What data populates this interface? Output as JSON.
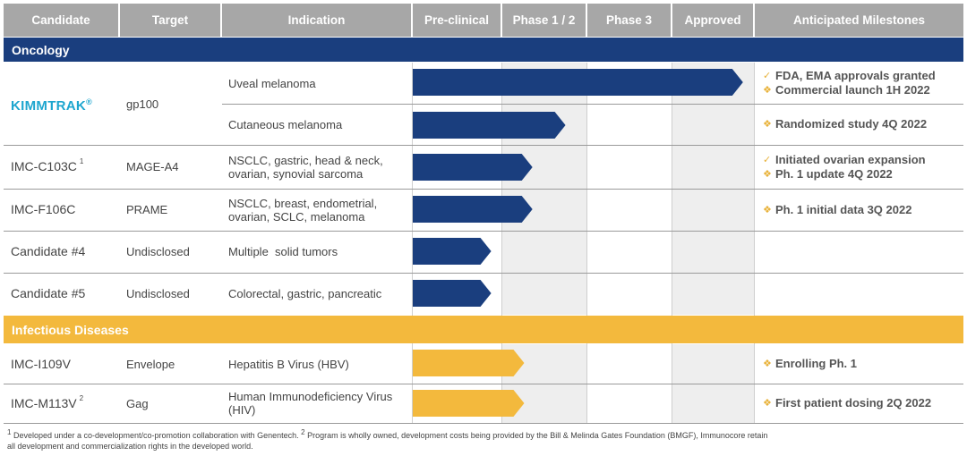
{
  "colors": {
    "header_bg": "#a7a7a7",
    "oncology": "#1a3e7e",
    "infectious": "#f3b93d",
    "kimmtrak": "#1ea6cf",
    "milestone_mark": "#e8b23a"
  },
  "headers": {
    "candidate": "Candidate",
    "target": "Target",
    "indication": "Indication",
    "preclinical": "Pre-clinical",
    "phase12": "Phase 1 / 2",
    "phase3": "Phase 3",
    "approved": "Approved",
    "milestones": "Anticipated Milestones"
  },
  "sections": {
    "oncology": "Oncology",
    "infectious": "Infectious Diseases"
  },
  "rows": {
    "kimmtrak": {
      "candidate": "KIMMTRAK",
      "candidate_mark": "®",
      "target": "gp100",
      "ind1": "Uveal melanoma",
      "ind2": "Cutaneous melanoma",
      "ms1a": "FDA, EMA approvals granted",
      "ms1b": "Commercial launch 1H 2022",
      "ms2": "Randomized study 4Q 2022"
    },
    "c103c": {
      "candidate": "IMC-C103C",
      "footnote": "1",
      "target": "MAGE-A4",
      "ind_a": "NSCLC, gastric, head & neck,",
      "ind_b": "ovarian, synovial sarcoma",
      "ms_a": "Initiated ovarian expansion",
      "ms_b": "Ph. 1 update 4Q 2022"
    },
    "f106c": {
      "candidate": "IMC-F106C",
      "target": "PRAME",
      "ind_a": "NSCLC, breast, endometrial,",
      "ind_b": "ovarian, SCLC, melanoma",
      "ms": "Ph. 1 initial data 3Q 2022"
    },
    "c4": {
      "candidate": "Candidate #4",
      "target": "Undisclosed",
      "ind": "Multiple  solid tumors"
    },
    "c5": {
      "candidate": "Candidate #5",
      "target": "Undisclosed",
      "ind": "Colorectal, gastric, pancreatic"
    },
    "i109v": {
      "candidate": "IMC-I109V",
      "target": "Envelope",
      "ind": "Hepatitis B Virus (HBV)",
      "ms": "Enrolling Ph. 1"
    },
    "m113v": {
      "candidate": "IMC-M113V",
      "footnote": "2",
      "target": "Gag",
      "ind_a": "Human Immunodeficiency Virus",
      "ind_b": "(HIV)",
      "ms": "First patient dosing 2Q 2022"
    }
  },
  "marks": {
    "check": "✓",
    "diamond": "❖"
  },
  "footnote": {
    "n1": "1",
    "t1": " Developed under a co-development/co-promotion collaboration with Genentech. ",
    "n2": "2",
    "t2": " Program is wholly owned, development costs being provided by the Bill & Melinda Gates Foundation (BMGF), Immunocore retain",
    "t3": "all development and commercialization rights in the developed world."
  },
  "chart_data": {
    "type": "bar",
    "orientation": "horizontal",
    "stages": [
      "Pre-clinical",
      "Phase 1 / 2",
      "Phase 3",
      "Approved"
    ],
    "series": [
      {
        "name": "Oncology",
        "color": "#1a3e7e",
        "items": [
          {
            "candidate": "KIMMTRAK",
            "indication": "Uveal melanoma",
            "progress": 4.0
          },
          {
            "candidate": "KIMMTRAK",
            "indication": "Cutaneous melanoma",
            "progress": 1.85
          },
          {
            "candidate": "IMC-C103C",
            "indication": "NSCLC, gastric, head & neck, ovarian, synovial sarcoma",
            "progress": 1.45
          },
          {
            "candidate": "IMC-F106C",
            "indication": "NSCLC, breast, endometrial, ovarian, SCLC, melanoma",
            "progress": 1.45
          },
          {
            "candidate": "Candidate #4",
            "indication": "Multiple solid tumors",
            "progress": 0.95
          },
          {
            "candidate": "Candidate #5",
            "indication": "Colorectal, gastric, pancreatic",
            "progress": 0.95
          }
        ]
      },
      {
        "name": "Infectious Diseases",
        "color": "#f3b93d",
        "items": [
          {
            "candidate": "IMC-I109V",
            "indication": "Hepatitis B Virus (HBV)",
            "progress": 1.35
          },
          {
            "candidate": "IMC-M113V",
            "indication": "Human Immunodeficiency Virus (HIV)",
            "progress": 1.35
          }
        ]
      }
    ]
  }
}
